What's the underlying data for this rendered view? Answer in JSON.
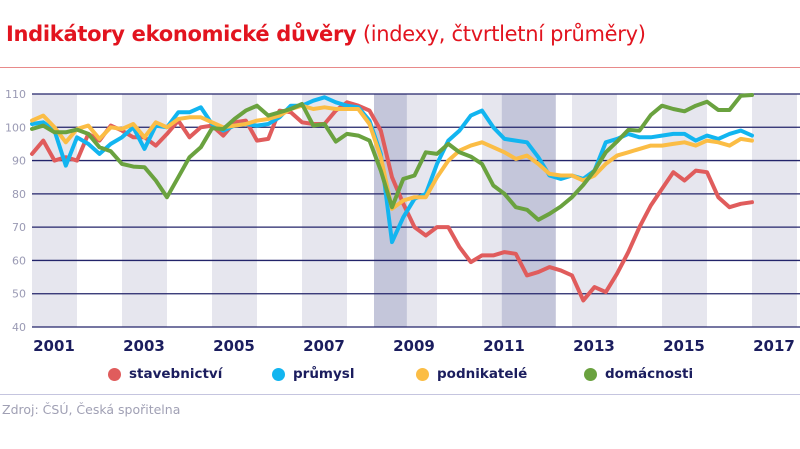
{
  "title": {
    "bold": "Indikátory ekonomické důvěry",
    "rest": " (indexy, čtvrtletní průměry)"
  },
  "source": "Zdroj: ČSÚ, Česká spořitelna",
  "chart_data": {
    "type": "line",
    "title": "Indikátory ekonomické důvěry (indexy, čtvrtletní průměry)",
    "xlabel": "",
    "ylabel": "",
    "ylim": [
      40,
      110
    ],
    "xlim": [
      2001,
      2018
    ],
    "yticks": [
      "40",
      "50",
      "60",
      "70",
      "80",
      "90",
      "100",
      "110"
    ],
    "xticks": [
      "2001",
      "2003",
      "2005",
      "2007",
      "2009",
      "2011",
      "2013",
      "2015",
      "2017"
    ],
    "grid": "horizontal",
    "legend": "bottom",
    "shaded_odd_years": true,
    "shaded_periods": [
      [
        2008.6,
        2009.33
      ],
      [
        2011.44,
        2012.64
      ]
    ],
    "x": [
      "2001Q1",
      "2001Q2",
      "2001Q3",
      "2001Q4",
      "2002Q1",
      "2002Q2",
      "2002Q3",
      "2002Q4",
      "2003Q1",
      "2003Q2",
      "2003Q3",
      "2003Q4",
      "2004Q1",
      "2004Q2",
      "2004Q3",
      "2004Q4",
      "2005Q1",
      "2005Q2",
      "2005Q3",
      "2005Q4",
      "2006Q1",
      "2006Q2",
      "2006Q3",
      "2006Q4",
      "2007Q1",
      "2007Q2",
      "2007Q3",
      "2007Q4",
      "2008Q1",
      "2008Q2",
      "2008Q3",
      "2008Q4",
      "2009Q1",
      "2009Q2",
      "2009Q3",
      "2009Q4",
      "2010Q1",
      "2010Q2",
      "2010Q3",
      "2010Q4",
      "2011Q1",
      "2011Q2",
      "2011Q3",
      "2011Q4",
      "2012Q1",
      "2012Q2",
      "2012Q3",
      "2012Q4",
      "2013Q1",
      "2013Q2",
      "2013Q3",
      "2013Q4",
      "2014Q1",
      "2014Q2",
      "2014Q3",
      "2014Q4",
      "2015Q1",
      "2015Q2",
      "2015Q3",
      "2015Q4",
      "2016Q1",
      "2016Q2",
      "2016Q3",
      "2016Q4",
      "2017Q1"
    ],
    "series": [
      {
        "name": "stavebnictví",
        "color": "#e05c5c",
        "values": [
          92,
          96,
          90,
          91,
          90,
          98,
          96,
          100.5,
          99,
          97,
          97,
          94.5,
          98,
          102,
          97,
          100,
          100.5,
          97.5,
          101.5,
          102,
          96,
          96.5,
          105,
          104.5,
          101.5,
          101,
          101,
          105,
          107.5,
          106.5,
          105,
          99,
          85,
          77,
          70,
          67.5,
          70,
          70,
          64,
          59.5,
          61.5,
          61.5,
          62.5,
          62,
          55.5,
          56.5,
          58,
          57,
          55.5,
          48,
          52,
          50.5,
          56,
          62.5,
          70,
          76.5,
          81.5,
          86.5,
          84,
          87,
          86.5,
          79,
          76,
          77,
          77.5
        ]
      },
      {
        "name": "průmysl",
        "color": "#12b5f0",
        "values": [
          101,
          101.5,
          99,
          88.5,
          97,
          95,
          92,
          95,
          97,
          100,
          93.5,
          100.5,
          100,
          104.5,
          104.5,
          106,
          101,
          99,
          100.5,
          101,
          100.5,
          101,
          103,
          106.5,
          106.5,
          108,
          109,
          107.5,
          106.5,
          106,
          102,
          92,
          65.5,
          73,
          78.5,
          80,
          89,
          96,
          99,
          103.5,
          105,
          100,
          96.5,
          96,
          95.5,
          91,
          85.5,
          84.5,
          85.5,
          84.5,
          87,
          95.5,
          96.5,
          98,
          97,
          97,
          97.5,
          98,
          98,
          96,
          97.5,
          96.5,
          98,
          99,
          97.5
        ]
      },
      {
        "name": "podnikatelé",
        "color": "#fbbd45",
        "values": [
          102,
          103.5,
          100,
          95.5,
          99.5,
          100.5,
          96.5,
          100,
          99.5,
          101,
          97,
          101.5,
          100,
          102.5,
          103,
          103,
          101.5,
          100,
          100.5,
          101,
          102,
          102.5,
          103.5,
          105.5,
          106.5,
          105.5,
          106,
          105.5,
          105.5,
          105.5,
          101,
          91,
          75.5,
          78,
          79,
          79,
          85,
          90,
          93,
          94.5,
          95.5,
          94,
          92.5,
          90.5,
          91.5,
          89,
          86,
          85.5,
          85.5,
          84,
          85.5,
          89,
          91.5,
          92.5,
          93.5,
          94.5,
          94.5,
          95,
          95.5,
          94.5,
          96,
          95.5,
          94.5,
          96.5,
          96
        ]
      },
      {
        "name": "domácnosti",
        "color": "#6aa23f",
        "values": [
          99.5,
          100.5,
          98.5,
          98.5,
          99.3,
          98,
          94,
          92.8,
          89,
          88.2,
          88,
          84,
          79,
          85,
          91,
          94,
          99.7,
          99.5,
          102.5,
          105,
          106.5,
          103.5,
          104.5,
          105.5,
          107,
          100.5,
          101,
          95.7,
          98,
          97.5,
          96,
          87,
          76,
          84.5,
          85.5,
          92.5,
          92,
          95,
          92.5,
          91.2,
          89,
          82.5,
          80,
          76,
          75.2,
          72.2,
          74,
          76.2,
          79,
          82.7,
          87,
          92.5,
          95.7,
          99.2,
          99,
          103.7,
          106.5,
          105.5,
          104.8,
          106.5,
          107.7,
          105.2,
          105.2,
          109.5,
          109.7
        ]
      }
    ]
  }
}
